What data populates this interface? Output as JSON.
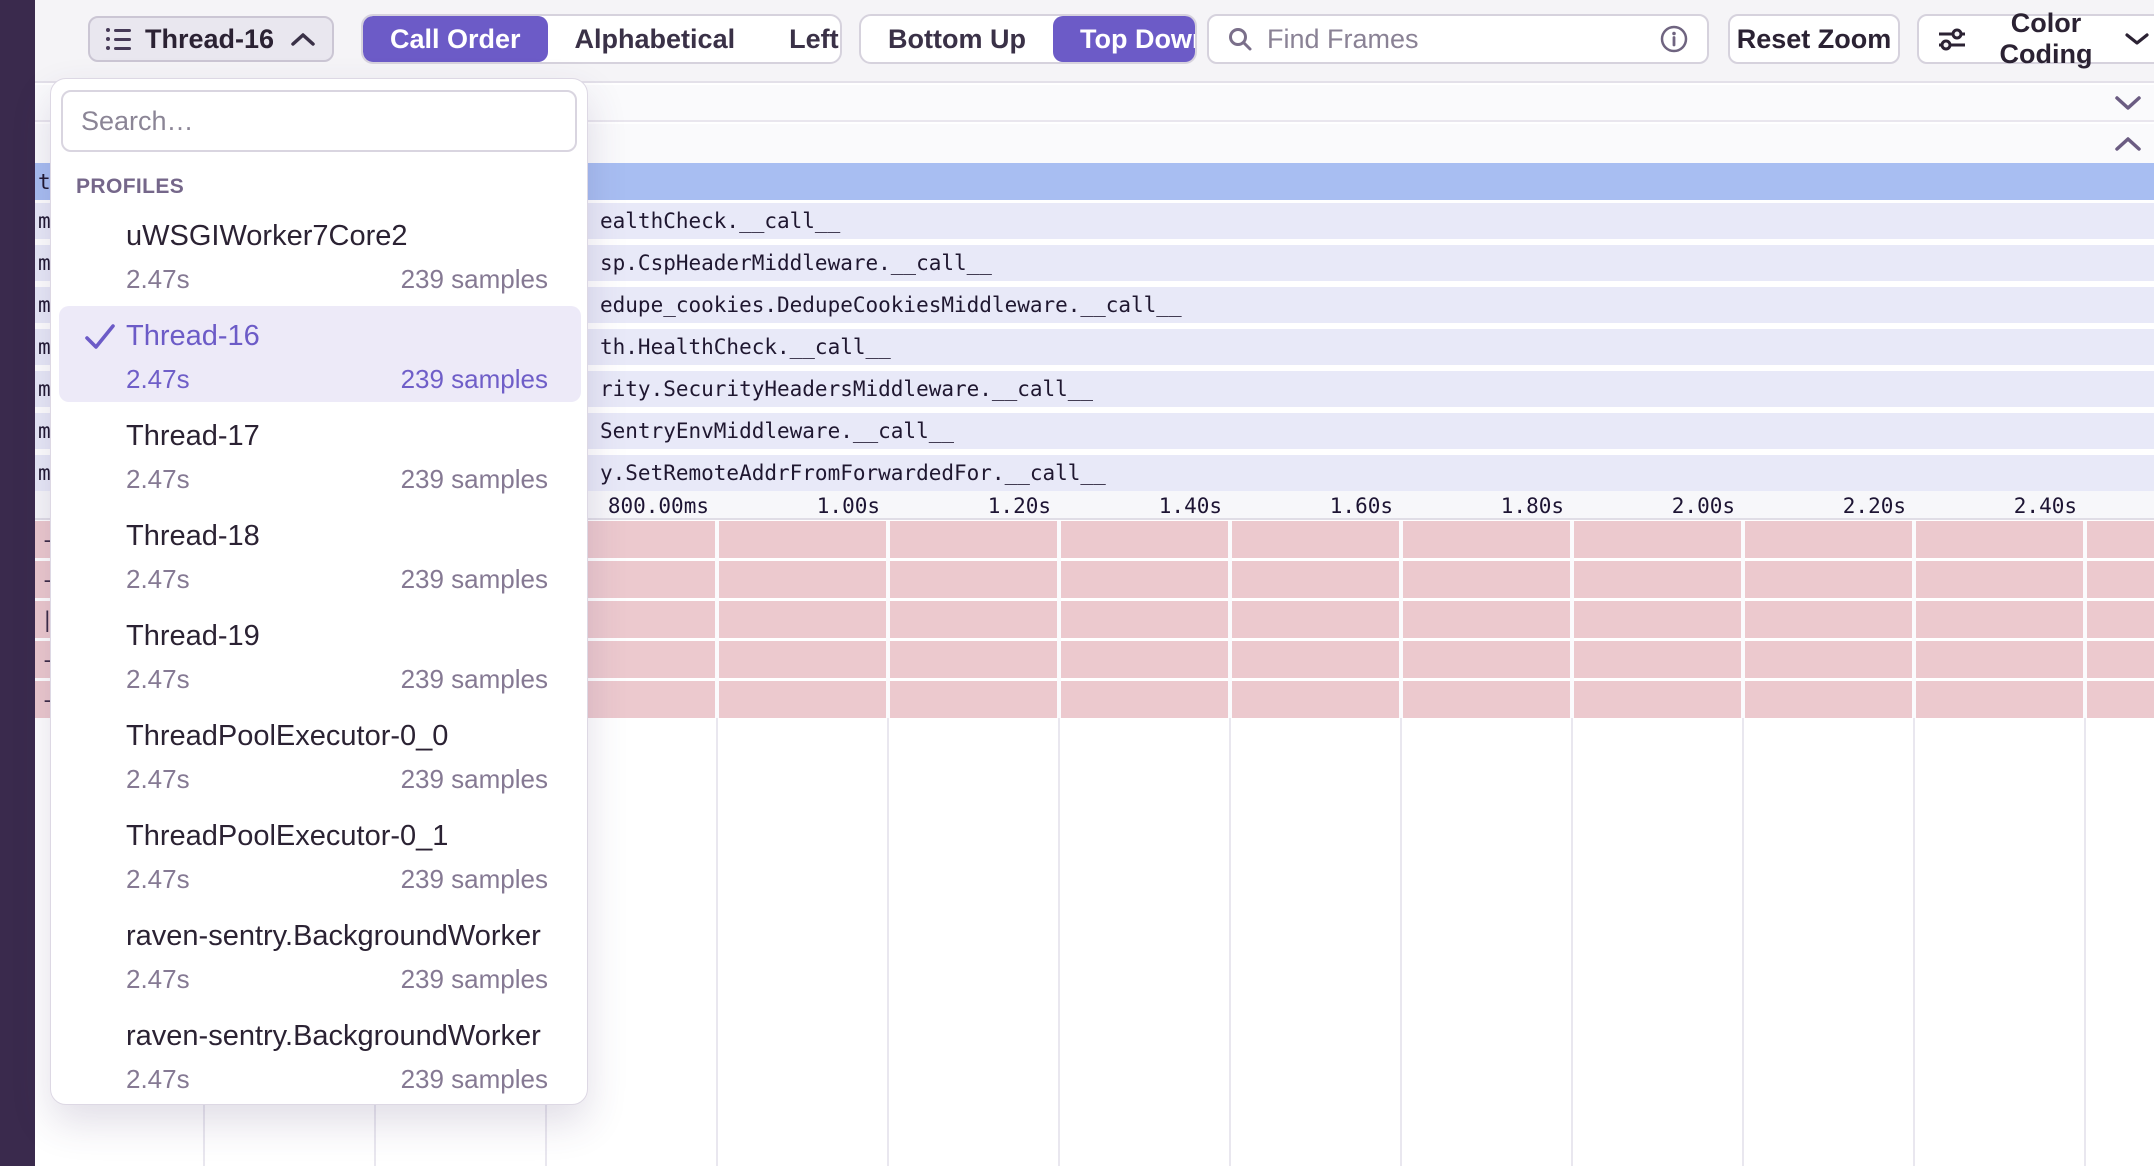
{
  "colors": {
    "accent": "#6c5bc7",
    "sidebar": "#3a2a4d",
    "row_blue": "#a8bef2",
    "row_lavender": "#e8e9f8",
    "row_pink": "#ecc9ce",
    "selected_item_bg": "#edeaf8"
  },
  "toolbar": {
    "thread_selector": {
      "label": "Thread-16"
    },
    "sort_control": {
      "options": [
        "Call Order",
        "Alphabetical",
        "Left Heavy"
      ],
      "selected": "Call Order"
    },
    "direction_control": {
      "options": [
        "Bottom Up",
        "Top Down"
      ],
      "selected": "Top Down"
    },
    "find_frames": {
      "placeholder": "Find Frames"
    },
    "reset_zoom_label": "Reset Zoom",
    "color_coding_label": "Color Coding"
  },
  "dropdown": {
    "search_placeholder": "Search…",
    "section_label": "PROFILES",
    "items": [
      {
        "name": "uWSGIWorker7Core2",
        "duration": "2.47s",
        "samples": "239 samples",
        "selected": false
      },
      {
        "name": "Thread-16",
        "duration": "2.47s",
        "samples": "239 samples",
        "selected": true
      },
      {
        "name": "Thread-17",
        "duration": "2.47s",
        "samples": "239 samples",
        "selected": false
      },
      {
        "name": "Thread-18",
        "duration": "2.47s",
        "samples": "239 samples",
        "selected": false
      },
      {
        "name": "Thread-19",
        "duration": "2.47s",
        "samples": "239 samples",
        "selected": false
      },
      {
        "name": "ThreadPoolExecutor-0_0",
        "duration": "2.47s",
        "samples": "239 samples",
        "selected": false
      },
      {
        "name": "ThreadPoolExecutor-0_1",
        "duration": "2.47s",
        "samples": "239 samples",
        "selected": false
      },
      {
        "name": "raven-sentry.BackgroundWorker",
        "duration": "2.47s",
        "samples": "239 samples",
        "selected": false
      },
      {
        "name": "raven-sentry.BackgroundWorker",
        "duration": "2.47s",
        "samples": "239 samples",
        "selected": false
      }
    ]
  },
  "flamegraph": {
    "selected_row": {
      "left_fragment": "t"
    },
    "rows": [
      {
        "left_fragment": "m",
        "text": "ealthCheck.__call__"
      },
      {
        "left_fragment": "m",
        "text": "sp.CspHeaderMiddleware.__call__"
      },
      {
        "left_fragment": "m",
        "text": "edupe_cookies.DedupeCookiesMiddleware.__call__"
      },
      {
        "left_fragment": "m",
        "text": "th.HealthCheck.__call__"
      },
      {
        "left_fragment": "m",
        "text": "rity.SecurityHeadersMiddleware.__call__"
      },
      {
        "left_fragment": "m",
        "text": "SentryEnvMiddleware.__call__"
      },
      {
        "left_fragment": "m",
        "text": "y.SetRemoteAddrFromForwardedFor.__call__"
      }
    ],
    "axis_ticks": [
      "800.00ms",
      "1.00s",
      "1.20s",
      "1.40s",
      "1.60s",
      "1.80s",
      "2.00s",
      "2.20s",
      "2.40s"
    ],
    "pink_row_fragments": [
      "-",
      "-",
      "|",
      "-",
      "-"
    ]
  }
}
